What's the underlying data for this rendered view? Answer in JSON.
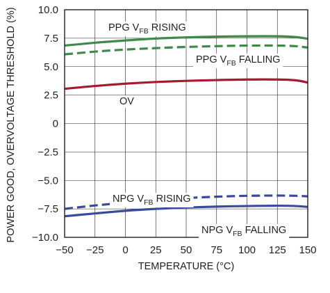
{
  "chart_data": {
    "type": "line",
    "title": "",
    "xlabel": "TEMPERATURE (°C)",
    "ylabel": "POWER GOOD, OVERVOLTAGE THRESHOLD (%)",
    "xlim": [
      -50,
      150
    ],
    "ylim": [
      -10,
      10
    ],
    "xticks": [
      -50,
      -25,
      0,
      25,
      50,
      75,
      100,
      125,
      150
    ],
    "xtick_labels": [
      "−50",
      "−25",
      "0",
      "25",
      "50",
      "75",
      "100",
      "125",
      "150"
    ],
    "yticks": [
      10,
      7.5,
      5,
      2.5,
      0,
      -2.5,
      -5,
      -7.5,
      -10
    ],
    "ytick_labels": [
      "10.0",
      "7.5",
      "5.0",
      "2.5",
      "0",
      "−2.5",
      "−5.0",
      "−7.5",
      "−10.0"
    ],
    "grid": true,
    "x": [
      -50,
      -25,
      0,
      25,
      50,
      75,
      100,
      125,
      140,
      150
    ],
    "series": [
      {
        "key": "ppg-rising",
        "label": {
          "main": "PPG V",
          "sub": "FB",
          "rest": " RISING"
        },
        "color": "#3d8a4a",
        "style": "solid",
        "values": [
          6.85,
          7.1,
          7.3,
          7.47,
          7.57,
          7.64,
          7.67,
          7.67,
          7.6,
          7.45
        ]
      },
      {
        "key": "ppg-falling",
        "label": {
          "main": "PPG V",
          "sub": "FB",
          "rest": " FALLING"
        },
        "color": "#3d8a4a",
        "style": "dashed",
        "values": [
          6.08,
          6.32,
          6.5,
          6.63,
          6.73,
          6.8,
          6.85,
          6.85,
          6.8,
          6.67
        ]
      },
      {
        "key": "ov",
        "label": {
          "main": "OV",
          "sub": "",
          "rest": ""
        },
        "color": "#a6192e",
        "style": "solid",
        "values": [
          3.05,
          3.3,
          3.5,
          3.65,
          3.75,
          3.82,
          3.87,
          3.87,
          3.8,
          3.6
        ]
      },
      {
        "key": "npg-rising",
        "label": {
          "main": "NPG V",
          "sub": "FB",
          "rest": " RISING"
        },
        "color": "#3a4b9c",
        "style": "dashed",
        "values": [
          -7.5,
          -7.2,
          -6.95,
          -6.72,
          -6.55,
          -6.43,
          -6.35,
          -6.33,
          -6.35,
          -6.4
        ]
      },
      {
        "key": "npg-falling",
        "label": {
          "main": "NPG V",
          "sub": "FB",
          "rest": " FALLING"
        },
        "color": "#3a4b9c",
        "style": "solid",
        "values": [
          -8.15,
          -7.9,
          -7.67,
          -7.5,
          -7.38,
          -7.3,
          -7.25,
          -7.22,
          -7.25,
          -7.33
        ]
      }
    ]
  }
}
